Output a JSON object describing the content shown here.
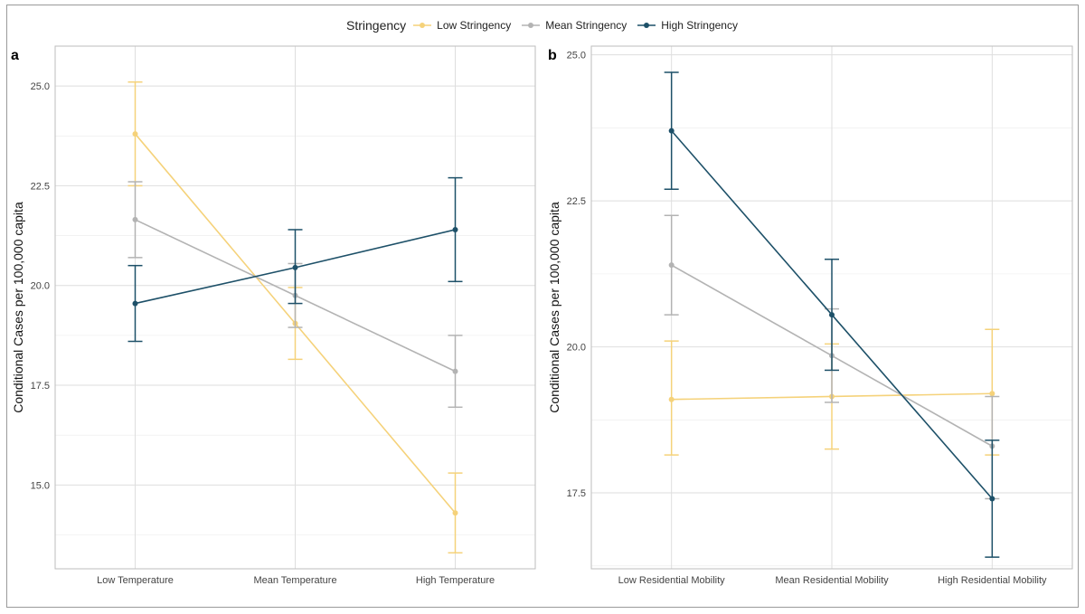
{
  "legend": {
    "title": "Stringency",
    "items": [
      {
        "label": "Low Stringency",
        "color": "#F5D27A"
      },
      {
        "label": "Mean Stringency",
        "color": "#B3B3B3"
      },
      {
        "label": "High Stringency",
        "color": "#1D5068"
      }
    ]
  },
  "chart_data": [
    {
      "type": "line",
      "panel_tag": "a",
      "ylabel": "Conditional Cases per 100,000 capita",
      "xlabel": "",
      "categories": [
        "Low Temperature",
        "Mean Temperature",
        "High Temperature"
      ],
      "ylim": [
        12.9,
        26.0
      ],
      "yticks": [
        15.0,
        17.5,
        20.0,
        22.5,
        25.0
      ],
      "ytick_labels": [
        "15.0",
        "17.5",
        "20.0",
        "22.5",
        "25.0"
      ],
      "grid": true,
      "error_bars": true,
      "series": [
        {
          "name": "Low Stringency",
          "color": "#F5D27A",
          "values": [
            23.8,
            19.05,
            14.3
          ],
          "lower": [
            22.5,
            18.15,
            13.3
          ],
          "upper": [
            25.1,
            19.95,
            15.3
          ]
        },
        {
          "name": "Mean Stringency",
          "color": "#B3B3B3",
          "values": [
            21.65,
            19.75,
            17.85
          ],
          "lower": [
            20.7,
            18.95,
            16.95
          ],
          "upper": [
            22.6,
            20.55,
            18.75
          ]
        },
        {
          "name": "High Stringency",
          "color": "#1D5068",
          "values": [
            19.55,
            20.45,
            21.4
          ],
          "lower": [
            18.6,
            19.55,
            20.1
          ],
          "upper": [
            20.5,
            21.4,
            22.7
          ]
        }
      ]
    },
    {
      "type": "line",
      "panel_tag": "b",
      "ylabel": "Conditional Cases per 100,000 capita",
      "xlabel": "",
      "categories": [
        "Low Residential Mobility",
        "Mean Residential Mobility",
        "High Residential Mobility"
      ],
      "ylim": [
        16.2,
        25.15
      ],
      "yticks": [
        17.5,
        20.0,
        22.5,
        25.0
      ],
      "ytick_labels": [
        "17.5",
        "20.0",
        "22.5",
        "25.0"
      ],
      "grid": true,
      "error_bars": true,
      "series": [
        {
          "name": "Low Stringency",
          "color": "#F5D27A",
          "values": [
            19.1,
            19.15,
            19.2
          ],
          "lower": [
            18.15,
            18.25,
            18.15
          ],
          "upper": [
            20.1,
            20.05,
            20.3
          ]
        },
        {
          "name": "Mean Stringency",
          "color": "#B3B3B3",
          "values": [
            21.4,
            19.85,
            18.3
          ],
          "lower": [
            20.55,
            19.05,
            17.4
          ],
          "upper": [
            22.25,
            20.65,
            19.15
          ]
        },
        {
          "name": "High Stringency",
          "color": "#1D5068",
          "values": [
            23.7,
            20.55,
            17.4
          ],
          "lower": [
            22.7,
            19.6,
            16.4
          ],
          "upper": [
            24.7,
            21.5,
            18.4
          ]
        }
      ]
    }
  ]
}
